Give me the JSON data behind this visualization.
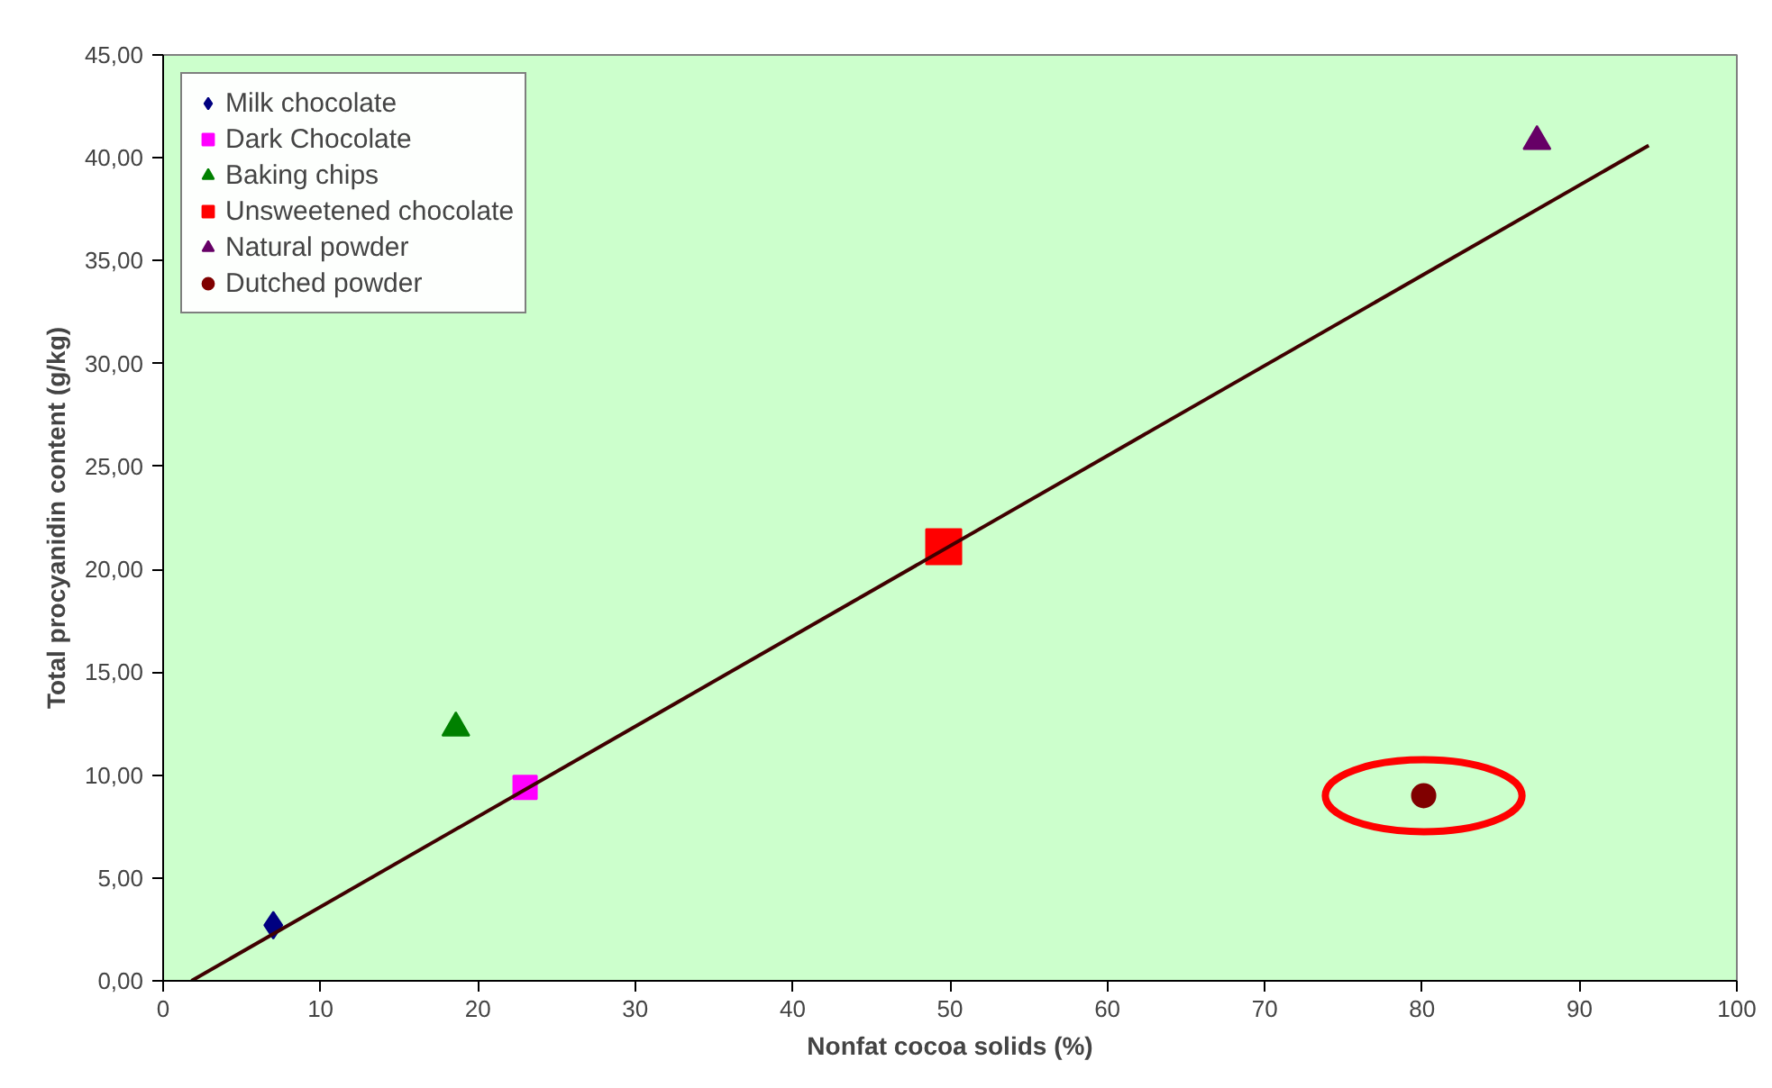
{
  "chart_data": {
    "type": "scatter",
    "xlabel": "Nonfat cocoa solids (%)",
    "ylabel": "Total procyanidin content (g/kg)",
    "xlim": [
      0,
      100
    ],
    "xticks": [
      0,
      10,
      20,
      30,
      40,
      50,
      60,
      70,
      80,
      90,
      100
    ],
    "ylim": [
      0,
      45
    ],
    "yticks": [
      {
        "value": 0,
        "label": "0,00"
      },
      {
        "value": 5,
        "label": "5,00"
      },
      {
        "value": 10,
        "label": "10,00"
      },
      {
        "value": 15,
        "label": "15,00"
      },
      {
        "value": 20,
        "label": "20,00"
      },
      {
        "value": 25,
        "label": "25,00"
      },
      {
        "value": 30,
        "label": "30,00"
      },
      {
        "value": 35,
        "label": "35,00"
      },
      {
        "value": 40,
        "label": "40,00"
      },
      {
        "value": 45,
        "label": "45,00"
      }
    ],
    "grid": false,
    "legend": "top left",
    "series": [
      {
        "name": "Milk chocolate",
        "color": "#000080",
        "marker": "diamond",
        "x": [
          7
        ],
        "values": [
          2.7
        ]
      },
      {
        "name": "Dark Chocolate",
        "color": "#ff00ff",
        "marker": "square",
        "x": [
          23
        ],
        "values": [
          9.4
        ]
      },
      {
        "name": "Baking chips",
        "color": "#008000",
        "marker": "triangle",
        "x": [
          18.6
        ],
        "values": [
          12.3
        ]
      },
      {
        "name": "Unsweetened chocolate",
        "color": "#ff0000",
        "marker": "square",
        "x": [
          49.6
        ],
        "values": [
          21.1
        ]
      },
      {
        "name": "Natural powder",
        "color": "#660066",
        "marker": "triangle",
        "x": [
          87.3
        ],
        "values": [
          40.8
        ]
      },
      {
        "name": "Dutched powder",
        "color": "#800000",
        "marker": "circle",
        "x": [
          80.1
        ],
        "values": [
          9.0
        ]
      },
      {
        "type": "line",
        "color": "#3f0000",
        "x": [
          1.8,
          94.4
        ],
        "values": [
          0,
          40.6
        ]
      }
    ]
  }
}
